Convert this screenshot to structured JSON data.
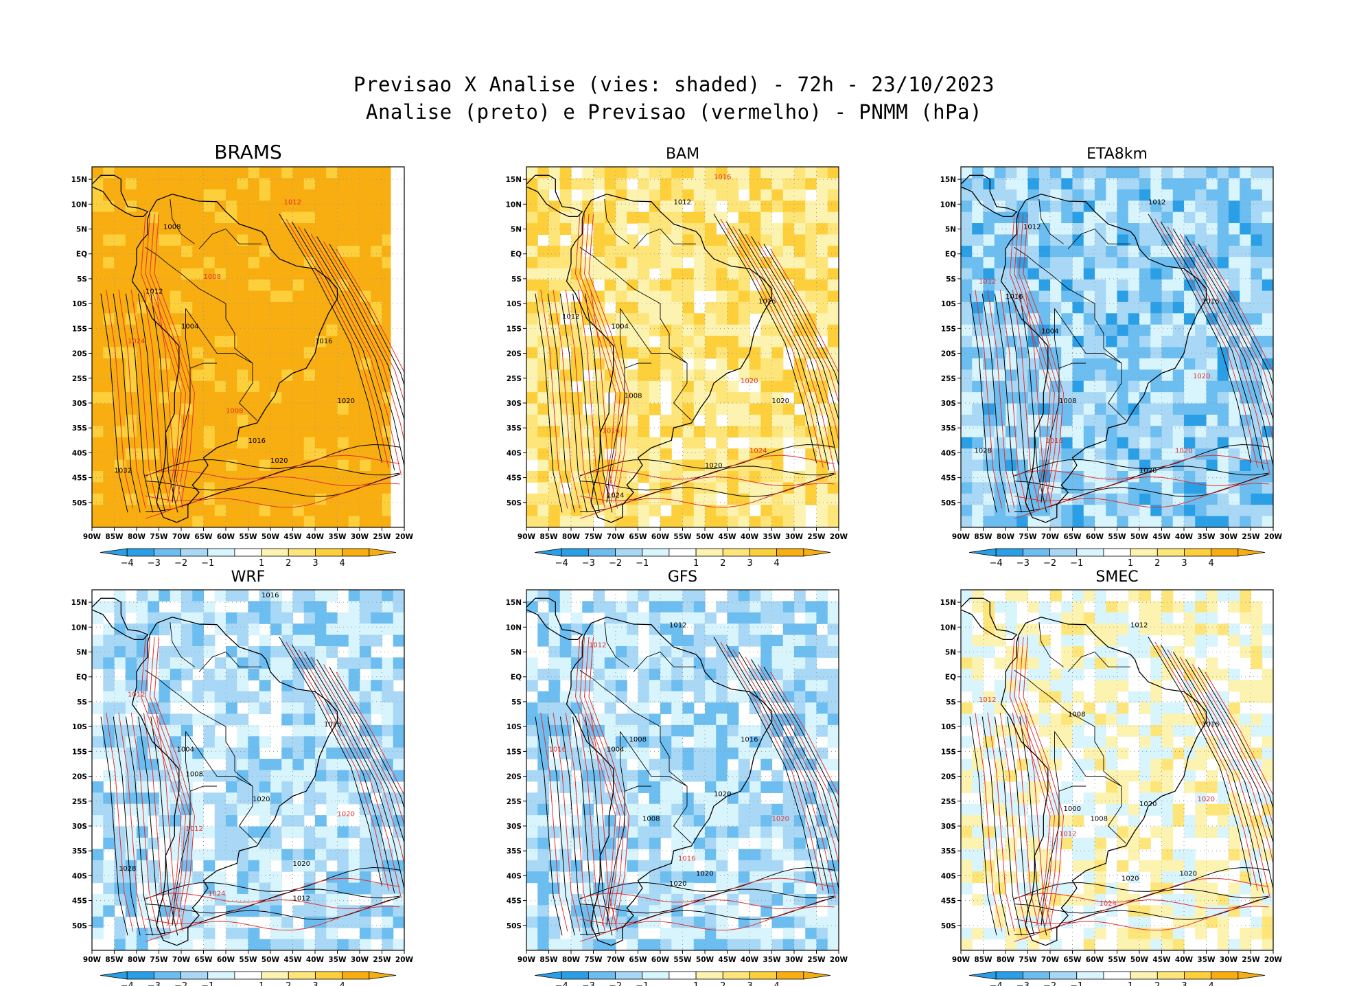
{
  "header": {
    "title_line1": "Previsao X Analise (vies: shaded) - 72h - 23/10/2023",
    "title_line2": "Analise (preto) e Previsao (vermelho) - PNMM (hPa)"
  },
  "colors": {
    "analysis_contour": "#000000",
    "forecast_contour": "#e03030",
    "bias_scale": [
      "#2a9fe6",
      "#6cbdf0",
      "#a8d8f6",
      "#d8f4fc",
      "#ffffff",
      "#fcf3b0",
      "#fde57a",
      "#fdcf3a",
      "#f8ae10"
    ]
  },
  "axes": {
    "lat_ticks": [
      "15N",
      "10N",
      "5N",
      "EQ",
      "5S",
      "10S",
      "15S",
      "20S",
      "25S",
      "30S",
      "35S",
      "40S",
      "45S",
      "50S"
    ],
    "lon_ticks": [
      "90W",
      "85W",
      "80W",
      "75W",
      "70W",
      "65W",
      "60W",
      "55W",
      "50W",
      "45W",
      "40W",
      "35W",
      "30W",
      "25W",
      "20W"
    ]
  },
  "colorbar": {
    "labels": [
      "-4",
      "-3",
      "-2",
      "-1",
      "1",
      "2",
      "3",
      "4"
    ]
  },
  "panels": [
    {
      "name": "BRAMS",
      "bias": 0.85,
      "labels": [
        {
          "t": "1008",
          "lon": -74,
          "lat": 5
        },
        {
          "t": "1012",
          "lon": -47,
          "lat": 10
        },
        {
          "t": "1016",
          "lon": -40,
          "lat": -18
        },
        {
          "t": "1020",
          "lon": -35,
          "lat": -30
        },
        {
          "t": "1008",
          "lon": -60,
          "lat": -32
        },
        {
          "t": "1016",
          "lon": -55,
          "lat": -38
        },
        {
          "t": "1020",
          "lon": -50,
          "lat": -42
        },
        {
          "t": "1024",
          "lon": -82,
          "lat": -18
        },
        {
          "t": "1032",
          "lon": -85,
          "lat": -44
        },
        {
          "t": "1004",
          "lon": -70,
          "lat": -15
        },
        {
          "t": "1008",
          "lon": -65,
          "lat": -5
        },
        {
          "t": "1012",
          "lon": -78,
          "lat": -8
        }
      ]
    },
    {
      "name": "BAM",
      "bias": 0.45,
      "labels": [
        {
          "t": "1012",
          "lon": -57,
          "lat": 10
        },
        {
          "t": "1016",
          "lon": -48,
          "lat": 15
        },
        {
          "t": "1012",
          "lon": -82,
          "lat": -13
        },
        {
          "t": "1016",
          "lon": -38,
          "lat": -10
        },
        {
          "t": "1020",
          "lon": -42,
          "lat": -26
        },
        {
          "t": "1020",
          "lon": -35,
          "lat": -30
        },
        {
          "t": "1020",
          "lon": -50,
          "lat": -43
        },
        {
          "t": "1024",
          "lon": -40,
          "lat": -40
        },
        {
          "t": "1024",
          "lon": -72,
          "lat": -49
        },
        {
          "t": "1008",
          "lon": -68,
          "lat": -29
        },
        {
          "t": "1016",
          "lon": -73,
          "lat": -36
        },
        {
          "t": "1004",
          "lon": -71,
          "lat": -15
        }
      ]
    },
    {
      "name": "ETA8km",
      "bias": -0.55,
      "labels": [
        {
          "t": "1012",
          "lon": -48,
          "lat": 10
        },
        {
          "t": "1012",
          "lon": -86,
          "lat": -6
        },
        {
          "t": "1016",
          "lon": -80,
          "lat": -9
        },
        {
          "t": "1016",
          "lon": -36,
          "lat": -10
        },
        {
          "t": "1020",
          "lon": -38,
          "lat": -25
        },
        {
          "t": "1028",
          "lon": -87,
          "lat": -40
        },
        {
          "t": "1020",
          "lon": -50,
          "lat": -44
        },
        {
          "t": "1020",
          "lon": -42,
          "lat": -40
        },
        {
          "t": "1008",
          "lon": -68,
          "lat": -30
        },
        {
          "t": "1004",
          "lon": -72,
          "lat": -16
        },
        {
          "t": "1016",
          "lon": -71,
          "lat": -38
        },
        {
          "t": "1012",
          "lon": -76,
          "lat": 5
        }
      ]
    },
    {
      "name": "WRF",
      "bias": -0.35,
      "labels": [
        {
          "t": "1016",
          "lon": -52,
          "lat": 16
        },
        {
          "t": "1012",
          "lon": -82,
          "lat": -4
        },
        {
          "t": "1016",
          "lon": -38,
          "lat": -10
        },
        {
          "t": "1020",
          "lon": -54,
          "lat": -25
        },
        {
          "t": "1020",
          "lon": -35,
          "lat": -28
        },
        {
          "t": "1028",
          "lon": -84,
          "lat": -39
        },
        {
          "t": "1020",
          "lon": -45,
          "lat": -38
        },
        {
          "t": "1024",
          "lon": -64,
          "lat": -44
        },
        {
          "t": "1012",
          "lon": -45,
          "lat": -45
        },
        {
          "t": "1008",
          "lon": -69,
          "lat": -20
        },
        {
          "t": "1012",
          "lon": -69,
          "lat": -31
        },
        {
          "t": "1004",
          "lon": -71,
          "lat": -15
        }
      ]
    },
    {
      "name": "GFS",
      "bias": -0.4,
      "labels": [
        {
          "t": "1012",
          "lon": -58,
          "lat": 10
        },
        {
          "t": "1016",
          "lon": -85,
          "lat": -15
        },
        {
          "t": "1016",
          "lon": -42,
          "lat": -13
        },
        {
          "t": "1020",
          "lon": -48,
          "lat": -24
        },
        {
          "t": "1020",
          "lon": -35,
          "lat": -29
        },
        {
          "t": "1020",
          "lon": -52,
          "lat": -40
        },
        {
          "t": "1020",
          "lon": -58,
          "lat": -42
        },
        {
          "t": "1016",
          "lon": -56,
          "lat": -37
        },
        {
          "t": "1008",
          "lon": -64,
          "lat": -29
        },
        {
          "t": "1004",
          "lon": -72,
          "lat": -15
        },
        {
          "t": "1012",
          "lon": -76,
          "lat": 6
        },
        {
          "t": "1008",
          "lon": -67,
          "lat": -13
        }
      ]
    },
    {
      "name": "SMEC",
      "bias": 0.05,
      "labels": [
        {
          "t": "1012",
          "lon": -52,
          "lat": 10
        },
        {
          "t": "1012",
          "lon": -86,
          "lat": -5
        },
        {
          "t": "1016",
          "lon": -36,
          "lat": -10
        },
        {
          "t": "1020",
          "lon": -50,
          "lat": -26
        },
        {
          "t": "1020",
          "lon": -37,
          "lat": -25
        },
        {
          "t": "1020",
          "lon": -54,
          "lat": -41
        },
        {
          "t": "1020",
          "lon": -41,
          "lat": -40
        },
        {
          "t": "1024",
          "lon": -59,
          "lat": -46
        },
        {
          "t": "1008",
          "lon": -61,
          "lat": -29
        },
        {
          "t": "1000",
          "lon": -67,
          "lat": -27
        },
        {
          "t": "1012",
          "lon": -68,
          "lat": -32
        },
        {
          "t": "1008",
          "lon": -66,
          "lat": -8
        }
      ]
    }
  ]
}
